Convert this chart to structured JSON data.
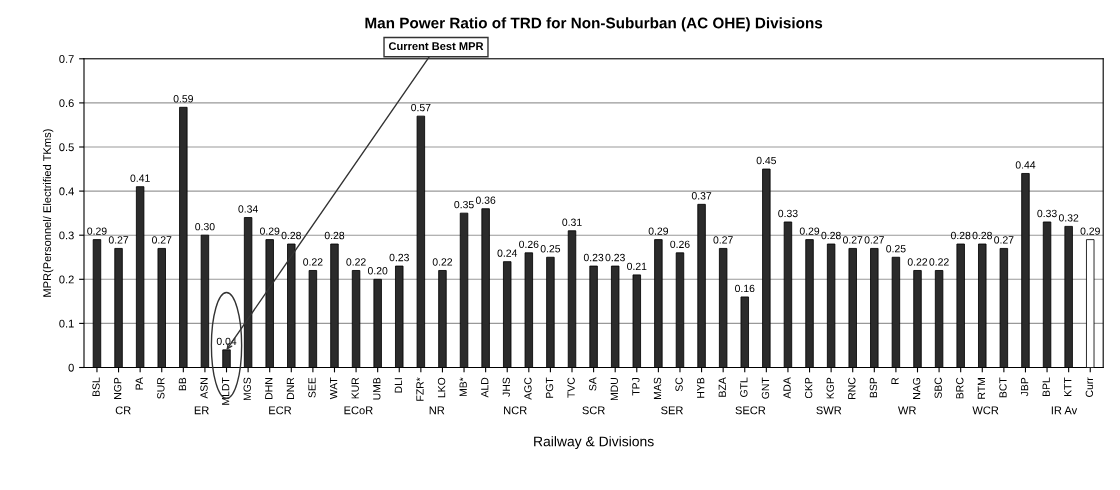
{
  "chart_data": {
    "type": "bar",
    "title": "Man Power Ratio of TRD for Non-Suburban (AC OHE) Divisions",
    "xlabel": "Railway & Divisions",
    "ylabel": "MPR(Personnel/ Electrified TKms)",
    "categories": [
      "BSL",
      "NGP",
      "PA",
      "SUR",
      "BB",
      "ASN",
      "MLDT",
      "MGS",
      "DHN",
      "DNR",
      "SEE",
      "WAT",
      "KUR",
      "UMB",
      "DLI",
      "FZR*",
      "LKO",
      "MB*",
      "ALD",
      "JHS",
      "AGC",
      "PGT",
      "TVC",
      "SA",
      "MDU",
      "TPJ",
      "MAS",
      "SC",
      "HYB",
      "BZA",
      "GTL",
      "GNT",
      "ADA",
      "CKP",
      "KGP",
      "RNC",
      "BSP",
      "R",
      "NAG",
      "SBC",
      "BRC",
      "RTM",
      "BCT",
      "JBP",
      "BPL",
      "KTT",
      "Curr"
    ],
    "values": [
      0.29,
      0.27,
      0.41,
      0.27,
      0.59,
      0.3,
      0.04,
      0.34,
      0.29,
      0.28,
      0.22,
      0.28,
      0.22,
      0.2,
      0.23,
      0.57,
      0.22,
      0.35,
      0.36,
      0.24,
      0.26,
      0.25,
      0.31,
      0.23,
      0.23,
      0.21,
      0.29,
      0.26,
      0.37,
      0.27,
      0.16,
      0.45,
      0.33,
      0.29,
      0.28,
      0.27,
      0.27,
      0.25,
      0.22,
      0.22,
      0.28,
      0.28,
      0.27,
      0.44,
      0.33,
      0.32,
      0.29
    ],
    "value_labels": [
      "0.29",
      "0.27",
      "0.41",
      "0.27",
      "0.59",
      "0.30",
      "0.04",
      "0.34",
      "0.29",
      "0.28",
      "0.22",
      "0.28",
      "0.22",
      "0.20",
      "0.23",
      "0.57",
      "0.22",
      "0.35",
      "0.36",
      "0.24",
      "0.26",
      "0.25",
      "0.31",
      "0.23",
      "0.23",
      "0.21",
      "0.29",
      "0.26",
      "0.37",
      "0.27",
      "0.16",
      "0.45",
      "0.33",
      "0.29",
      "0.28",
      "0.27",
      "0.27",
      "0.25",
      "0.22",
      "0.22",
      "0.28",
      "0.28",
      "0.27",
      "0.44",
      "0.33",
      "0.32",
      "0.29"
    ],
    "colors": [
      "#2b2b2b",
      "#2b2b2b",
      "#2b2b2b",
      "#2b2b2b",
      "#2b2b2b",
      "#2b2b2b",
      "#2b2b2b",
      "#2b2b2b",
      "#2b2b2b",
      "#2b2b2b",
      "#2b2b2b",
      "#2b2b2b",
      "#2b2b2b",
      "#2b2b2b",
      "#2b2b2b",
      "#2b2b2b",
      "#2b2b2b",
      "#2b2b2b",
      "#2b2b2b",
      "#2b2b2b",
      "#2b2b2b",
      "#2b2b2b",
      "#2b2b2b",
      "#2b2b2b",
      "#2b2b2b",
      "#2b2b2b",
      "#2b2b2b",
      "#2b2b2b",
      "#2b2b2b",
      "#2b2b2b",
      "#2b2b2b",
      "#2b2b2b",
      "#2b2b2b",
      "#2b2b2b",
      "#2b2b2b",
      "#2b2b2b",
      "#2b2b2b",
      "#2b2b2b",
      "#2b2b2b",
      "#2b2b2b",
      "#2b2b2b",
      "#2b2b2b",
      "#2b2b2b",
      "#2b2b2b",
      "#2b2b2b",
      "#2b2b2b",
      "#ffffff"
    ],
    "ylim": [
      0,
      0.7
    ],
    "yticks": [
      0,
      0.1,
      0.2,
      0.3,
      0.4,
      0.5,
      0.6,
      0.7
    ],
    "grid": "y",
    "legend": false,
    "annotations": [
      {
        "text": "Current Best MPR",
        "x": "MLDT",
        "y": 0.04
      },
      "CR",
      "ER",
      "ECR",
      "ECoR",
      "NR",
      "NCR",
      "SCR",
      "SER",
      "SECR",
      "SWR",
      "WR",
      "WCR",
      "IR Av"
    ]
  }
}
